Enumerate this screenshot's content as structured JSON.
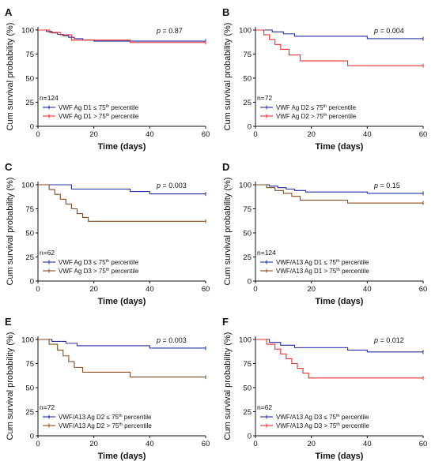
{
  "chart_data": [
    {
      "type": "line",
      "letter": "A",
      "p_label": "p",
      "p_text": " = 0.87",
      "n_text": "n=124",
      "ylabel": "Cum survival probability (%)",
      "xlabel": "Time (days)",
      "xlim": [
        0,
        60
      ],
      "ylim": [
        0,
        100
      ],
      "xticks": [
        0,
        20,
        40,
        60
      ],
      "yticks": [
        0,
        25,
        50,
        75,
        100
      ],
      "series": [
        {
          "legend_pre": "VWF Ag D1 ≤ 75",
          "legend_sup": "th",
          "legend_post": " percentile",
          "color": "#1f2fa8",
          "x": [
            0,
            3,
            5,
            7,
            9,
            11,
            13,
            16,
            20,
            60
          ],
          "y": [
            100,
            98.5,
            97,
            95.5,
            94,
            92.5,
            91,
            89.5,
            88.5,
            88.5
          ]
        },
        {
          "legend_pre": "VWF Ag D1 > 75",
          "legend_sup": "th",
          "legend_post": " percentile",
          "color": "#e8302c",
          "x": [
            0,
            4,
            8,
            12,
            33,
            60
          ],
          "y": [
            100,
            97.5,
            95,
            89.5,
            87,
            87
          ]
        }
      ]
    },
    {
      "type": "line",
      "letter": "B",
      "p_label": "p",
      "p_text": " = 0.004",
      "n_text": "n=72",
      "ylabel": "Cum survival probability (%)",
      "xlabel": "Time (days)",
      "xlim": [
        0,
        60
      ],
      "ylim": [
        0,
        100
      ],
      "xticks": [
        0,
        20,
        40,
        60
      ],
      "yticks": [
        0,
        25,
        50,
        75,
        100
      ],
      "series": [
        {
          "legend_pre": "VWF Ag D2 ≤ 75",
          "legend_sup": "th",
          "legend_post": " percentile",
          "color": "#1f2fa8",
          "x": [
            0,
            6,
            10,
            14,
            40,
            60
          ],
          "y": [
            100,
            98,
            96,
            93.5,
            91,
            91
          ]
        },
        {
          "legend_pre": "VWF Ag D2 > 75",
          "legend_sup": "th",
          "legend_post": " percentile",
          "color": "#e8302c",
          "x": [
            0,
            3,
            5,
            7,
            9,
            12,
            16,
            33,
            60
          ],
          "y": [
            100,
            95,
            90,
            85,
            80,
            74,
            68,
            63,
            63
          ]
        }
      ]
    },
    {
      "type": "line",
      "letter": "C",
      "p_label": "p",
      "p_text": " = 0.003",
      "n_text": "n=62",
      "ylabel": "Cum survival probability (%)",
      "xlabel": "Time (days)",
      "xlim": [
        0,
        60
      ],
      "ylim": [
        0,
        100
      ],
      "xticks": [
        0,
        20,
        40,
        60
      ],
      "yticks": [
        0,
        25,
        50,
        75,
        100
      ],
      "series": [
        {
          "legend_pre": "VWF Ag D3 ≤ 75",
          "legend_sup": "th",
          "legend_post": " percentile",
          "color": "#1f2fa8",
          "x": [
            0,
            12,
            33,
            40,
            60
          ],
          "y": [
            100,
            95.5,
            93,
            90.5,
            90.5
          ]
        },
        {
          "legend_pre": "VWF Ag D3 > 75",
          "legend_sup": "th",
          "legend_post": " percentile",
          "color": "#8a4a1a",
          "x": [
            0,
            4,
            6,
            8,
            10,
            12,
            14,
            16,
            18,
            60
          ],
          "y": [
            100,
            95,
            90,
            85,
            80,
            75,
            70,
            66,
            62,
            62
          ]
        }
      ]
    },
    {
      "type": "line",
      "letter": "D",
      "p_label": "p",
      "p_text": " = 0.15",
      "n_text": "n=124",
      "ylabel": "Cum survival probability (%)",
      "xlabel": "Time (days)",
      "xlim": [
        0,
        60
      ],
      "ylim": [
        0,
        100
      ],
      "xticks": [
        0,
        20,
        40,
        60
      ],
      "yticks": [
        0,
        25,
        50,
        75,
        100
      ],
      "series": [
        {
          "legend_pre": "VWF/A13 Ag D1 ≤ 75",
          "legend_sup": "th",
          "legend_post": " percentile",
          "color": "#1f2fa8",
          "x": [
            0,
            5,
            8,
            11,
            14,
            18,
            40,
            60
          ],
          "y": [
            100,
            98.5,
            97,
            95.5,
            94,
            92.5,
            91,
            91
          ]
        },
        {
          "legend_pre": "VWF/A13 Ag D1 > 75",
          "legend_sup": "th",
          "legend_post": " percentile",
          "color": "#8a4a1a",
          "x": [
            0,
            4,
            7,
            10,
            13,
            16,
            33,
            60
          ],
          "y": [
            100,
            97,
            94,
            91,
            88,
            84,
            81,
            81
          ]
        }
      ]
    },
    {
      "type": "line",
      "letter": "E",
      "p_label": "p",
      "p_text": " = 0.003",
      "n_text": "n=72",
      "ylabel": "Cum survival probability (%)",
      "xlabel": "Time (days)",
      "xlim": [
        0,
        60
      ],
      "ylim": [
        0,
        100
      ],
      "xticks": [
        0,
        20,
        40,
        60
      ],
      "yticks": [
        0,
        25,
        50,
        75,
        100
      ],
      "series": [
        {
          "legend_pre": "VWF/A13 Ag D2 ≤ 75",
          "legend_sup": "th",
          "legend_post": " percentile",
          "color": "#1f2fa8",
          "x": [
            0,
            5,
            10,
            14,
            40,
            60
          ],
          "y": [
            100,
            98,
            96,
            93.5,
            91,
            91
          ]
        },
        {
          "legend_pre": "VWF/A13 Ag D2 > 75",
          "legend_sup": "th",
          "legend_post": " percentile",
          "color": "#8a4a1a",
          "x": [
            0,
            4,
            7,
            9,
            11,
            13,
            16,
            33,
            60
          ],
          "y": [
            100,
            95,
            89,
            83,
            77,
            71,
            66,
            61,
            61
          ]
        }
      ]
    },
    {
      "type": "line",
      "letter": "F",
      "p_label": "p",
      "p_text": " = 0.012",
      "n_text": "n=62",
      "ylabel": "Cum survival probability (%)",
      "xlabel": "Time (days)",
      "xlim": [
        0,
        60
      ],
      "ylim": [
        0,
        100
      ],
      "xticks": [
        0,
        20,
        40,
        60
      ],
      "yticks": [
        0,
        25,
        50,
        75,
        100
      ],
      "series": [
        {
          "legend_pre": "VWF/A13 Ag D3 ≤ 75",
          "legend_sup": "th",
          "legend_post": " percentile",
          "color": "#1f2fa8",
          "x": [
            0,
            5,
            9,
            14,
            33,
            40,
            60
          ],
          "y": [
            100,
            97,
            94,
            91.5,
            89,
            87,
            87
          ]
        },
        {
          "legend_pre": "VWF/A13 Ag D3 > 75",
          "legend_sup": "th",
          "legend_post": " percentile",
          "color": "#e8302c",
          "x": [
            0,
            4,
            7,
            9,
            11,
            13,
            15,
            17,
            19,
            60
          ],
          "y": [
            100,
            95,
            90,
            85,
            80,
            75,
            70,
            65,
            60,
            60
          ]
        }
      ]
    }
  ]
}
